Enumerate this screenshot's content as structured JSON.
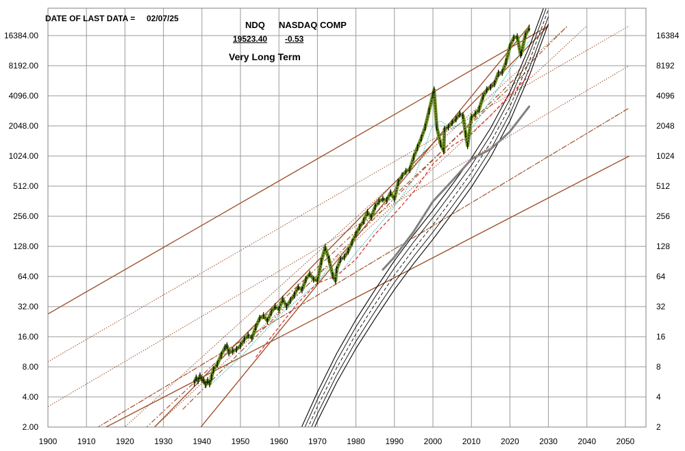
{
  "header": {
    "date_label": "DATE OF LAST DATA =",
    "date_value": "02/07/25",
    "symbol": "NDQ",
    "name": "NASDAQ COMP",
    "price": "19523.40",
    "change": "-0.53",
    "subtitle": "Very Long Term"
  },
  "chart_data": {
    "type": "line",
    "title": "",
    "xlabel": "",
    "ylabel": "",
    "xlim": [
      1900,
      2055
    ],
    "ylim": [
      2,
      22000
    ],
    "y_scale": "log2",
    "grid": true,
    "x_ticks": [
      1900,
      1910,
      1920,
      1930,
      1940,
      1950,
      1960,
      1970,
      1980,
      1990,
      2000,
      2010,
      2020,
      2030,
      2040,
      2050
    ],
    "y_ticks": [
      2,
      4,
      8,
      16,
      32,
      64,
      128,
      256,
      512,
      1024,
      2048,
      4096,
      8192,
      16384
    ],
    "y_tick_labels_left": [
      "2.00",
      "4.00",
      "8.00",
      "16.00",
      "32.00",
      "64.00",
      "128.00",
      "256.00",
      "512.00",
      "1024.00",
      "2048.00",
      "4096.00",
      "8192.00",
      "16384.00"
    ],
    "y_tick_labels_right": [
      "2",
      "4",
      "8",
      "16",
      "32",
      "64",
      "128",
      "256",
      "512",
      "1024",
      "2048",
      "4096",
      "8192",
      "16384"
    ],
    "colors": {
      "price": "#6b8e23",
      "price_bar": "#000000",
      "trend": "#a0522d",
      "ma_short": "#20b2aa",
      "ma_long": "#e03030",
      "ma_gray": "#808080",
      "channel": "#000000"
    },
    "series": [
      {
        "style": "price",
        "x": [
          1938,
          1938.5,
          1939,
          1939.5,
          1940,
          1940.5,
          1941,
          1941.5,
          1942,
          1942.5,
          1943,
          1944,
          1945,
          1946,
          1946.5,
          1947,
          1948,
          1949,
          1950,
          1951,
          1952,
          1953,
          1954,
          1955,
          1956,
          1957,
          1958,
          1959,
          1960,
          1961,
          1962,
          1963,
          1964,
          1965,
          1966,
          1967,
          1968,
          1969,
          1970,
          1971,
          1972,
          1973,
          1974,
          1974.7,
          1975,
          1976,
          1977,
          1978,
          1979,
          1980,
          1981,
          1982,
          1983,
          1984,
          1985,
          1986,
          1987,
          1988,
          1989,
          1990,
          1991,
          1992,
          1993,
          1994,
          1995,
          1996,
          1997,
          1998,
          1999,
          2000,
          2000.3,
          2001,
          2002,
          2002.8,
          2003,
          2004,
          2005,
          2006,
          2007,
          2007.8,
          2008.5,
          2009,
          2010,
          2011,
          2012,
          2013,
          2014,
          2015,
          2016,
          2017,
          2018,
          2019,
          2020,
          2021,
          2021.9,
          2022.8,
          2023,
          2024,
          2025
        ],
        "y": [
          5.5,
          6.2,
          5.8,
          6.5,
          6.0,
          5.8,
          5.3,
          5.8,
          5.4,
          6.3,
          7.5,
          8.5,
          10.5,
          12.5,
          13.0,
          11.0,
          11.5,
          12.0,
          13.0,
          15.0,
          16.5,
          15.5,
          20.0,
          24.5,
          26.0,
          23.0,
          28.0,
          32.0,
          30.0,
          38.0,
          32.0,
          37.0,
          42.0,
          50.0,
          47.0,
          60.0,
          68.0,
          60.0,
          58.0,
          90.0,
          125.0,
          95.0,
          65.0,
          58.0,
          75.0,
          95.0,
          100.0,
          115.0,
          140.0,
          170.0,
          200.0,
          230.0,
          280.0,
          250.0,
          320.0,
          360.0,
          380.0,
          370.0,
          440.0,
          380.0,
          560.0,
          650.0,
          720.0,
          750.0,
          1000.0,
          1250.0,
          1550.0,
          2000.0,
          2900.0,
          4200.0,
          4700.0,
          2000.0,
          1350.0,
          1150.0,
          1900.0,
          2000.0,
          2200.0,
          2400.0,
          2700.0,
          2600.0,
          1700.0,
          1300.0,
          2500.0,
          2700.0,
          3000.0,
          4000.0,
          4700.0,
          5000.0,
          5400.0,
          6900.0,
          7000.0,
          8900.0,
          12800.0,
          15600.0,
          16000.0,
          10500.0,
          11000.0,
          16500.0,
          19523.4
        ]
      },
      {
        "style": "ma_short",
        "x": [
          1942,
          1950,
          1960,
          1970,
          1973,
          1976,
          1980,
          1990,
          1995,
          2000,
          2002,
          2005,
          2008,
          2010,
          2015,
          2020,
          2023,
          2025
        ],
        "y": [
          5.2,
          10.0,
          26.0,
          55.0,
          80.0,
          70.0,
          110.0,
          320.0,
          600.0,
          2100.0,
          2300.0,
          1900.0,
          2300.0,
          1900.0,
          3700.0,
          7500.0,
          11000.0,
          14500.0
        ]
      },
      {
        "style": "ma_long",
        "x": [
          1954,
          1960,
          1965,
          1970,
          1975,
          1980,
          1985,
          1990,
          1995,
          2000,
          2005,
          2010,
          2015,
          2020,
          2025
        ],
        "y": [
          10.0,
          20.0,
          35.0,
          55.0,
          65.0,
          95.0,
          170.0,
          270.0,
          450.0,
          850.0,
          1300.0,
          1700.0,
          2600.0,
          4200.0,
          6500.0
        ]
      },
      {
        "style": "ma_gray",
        "x": [
          1987,
          1990,
          1995,
          2000,
          2005,
          2010,
          2015,
          2020,
          2025
        ],
        "y": [
          75.0,
          100.0,
          180.0,
          360.0,
          580.0,
          950.0,
          1200.0,
          1800.0,
          3200.0
        ]
      }
    ],
    "trendlines": [
      {
        "style": "solid",
        "x": [
          1900,
          2030
        ],
        "y": [
          27.0,
          20500.0
        ]
      },
      {
        "style": "solid",
        "x": [
          1900,
          2051
        ],
        "y": [
          1.0,
          1024.0
        ]
      },
      {
        "style": "solid",
        "x": [
          1920,
          2030
        ],
        "y": [
          1.0,
          20500.0
        ]
      },
      {
        "style": "solid",
        "x": [
          1935,
          2025
        ],
        "y": [
          1.2,
          20500.0
        ]
      },
      {
        "style": "dotted",
        "x": [
          1900,
          2051
        ],
        "y": [
          9.0,
          20500.0
        ]
      },
      {
        "style": "dotted",
        "x": [
          1900,
          2051
        ],
        "y": [
          3.2,
          8200.0
        ]
      },
      {
        "style": "dotted",
        "x": [
          1900,
          2051
        ],
        "y": [
          1.0,
          3100.0
        ]
      },
      {
        "style": "dotted",
        "x": [
          1910,
          2035
        ],
        "y": [
          0.9,
          20500.0
        ]
      },
      {
        "style": "dotted",
        "x": [
          1925,
          2040
        ],
        "y": [
          1.6,
          20500.0
        ]
      },
      {
        "style": "dashdot",
        "x": [
          1910,
          2051
        ],
        "y": [
          1.7,
          3100.0
        ]
      },
      {
        "style": "dashdot",
        "x": [
          1925,
          2025
        ],
        "y": [
          1.9,
          7500.0
        ]
      },
      {
        "style": "dashdot",
        "x": [
          1935,
          2035
        ],
        "y": [
          3.0,
          20500.0
        ]
      }
    ],
    "channel": {
      "x": [
        1965,
        1970,
        1975,
        1980,
        1985,
        1990,
        1995,
        2000,
        2005,
        2010,
        2015,
        2020,
        2025,
        2030
      ],
      "y": [
        1.2,
        3.2,
        7.8,
        17.0,
        34.0,
        66.0,
        120.0,
        210.0,
        380.0,
        700.0,
        1400.0,
        3200.0,
        9000.0,
        30000.0
      ],
      "offsets": [
        -0.12,
        -0.06,
        0.0,
        0.06,
        0.12
      ]
    }
  }
}
